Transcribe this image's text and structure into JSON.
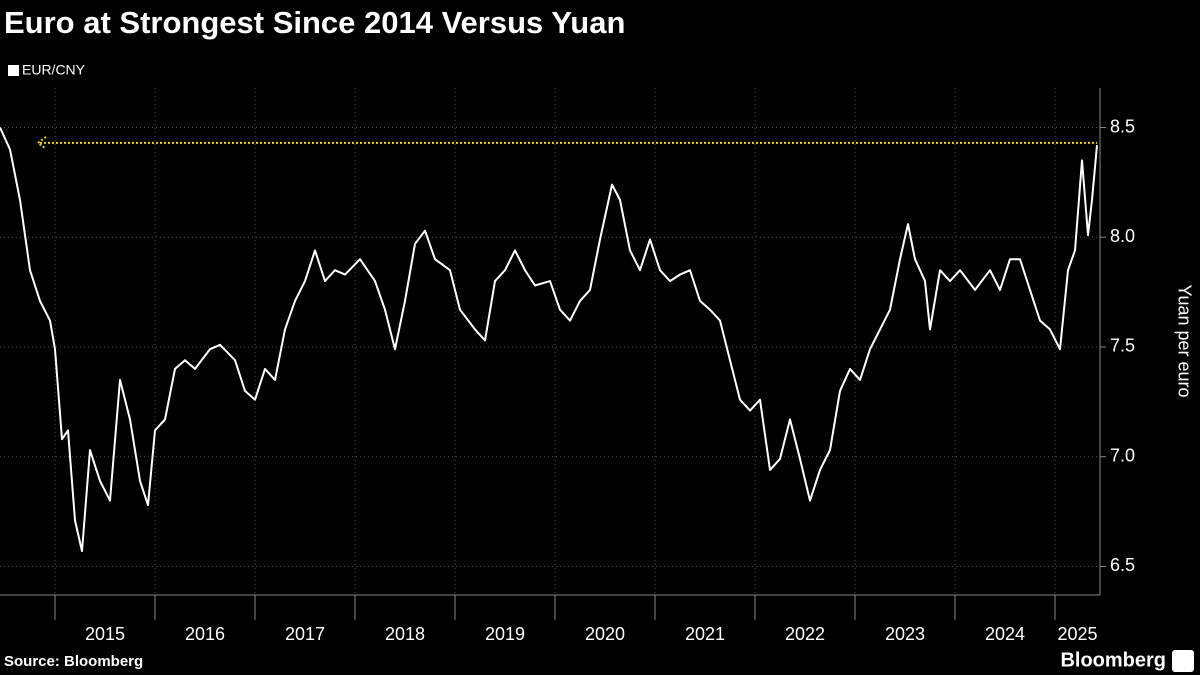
{
  "chart_data": {
    "type": "line",
    "title": "Euro at Strongest Since 2014 Versus Yuan",
    "y_axis_label": "Yuan per euro",
    "source": "Source: Bloomberg",
    "brand": "Bloomberg",
    "x": [
      2014.45,
      2014.55,
      2014.65,
      2014.75,
      2014.85,
      2014.95,
      2015.0,
      2015.07,
      2015.13,
      2015.2,
      2015.27,
      2015.35,
      2015.45,
      2015.55,
      2015.65,
      2015.75,
      2015.85,
      2015.93,
      2016.0,
      2016.1,
      2016.2,
      2016.3,
      2016.4,
      2016.55,
      2016.65,
      2016.8,
      2016.9,
      2017.0,
      2017.1,
      2017.2,
      2017.3,
      2017.4,
      2017.5,
      2017.6,
      2017.7,
      2017.8,
      2017.9,
      2018.05,
      2018.2,
      2018.3,
      2018.4,
      2018.5,
      2018.6,
      2018.7,
      2018.8,
      2018.95,
      2019.05,
      2019.2,
      2019.3,
      2019.4,
      2019.5,
      2019.6,
      2019.7,
      2019.8,
      2019.95,
      2020.05,
      2020.15,
      2020.25,
      2020.35,
      2020.45,
      2020.57,
      2020.65,
      2020.75,
      2020.85,
      2020.95,
      2021.05,
      2021.15,
      2021.25,
      2021.35,
      2021.45,
      2021.55,
      2021.65,
      2021.75,
      2021.85,
      2021.95,
      2022.05,
      2022.15,
      2022.25,
      2022.35,
      2022.45,
      2022.55,
      2022.65,
      2022.75,
      2022.85,
      2022.95,
      2023.05,
      2023.15,
      2023.25,
      2023.35,
      2023.45,
      2023.53,
      2023.6,
      2023.7,
      2023.75,
      2023.85,
      2023.95,
      2024.05,
      2024.2,
      2024.35,
      2024.45,
      2024.55,
      2024.65,
      2024.75,
      2024.85,
      2024.95,
      2025.05,
      2025.13,
      2025.2,
      2025.27,
      2025.33,
      2025.37,
      2025.42
    ],
    "series": [
      {
        "name": "EUR/CNY",
        "color": "#ffffff",
        "values": [
          8.5,
          8.4,
          8.17,
          7.85,
          7.71,
          7.62,
          7.49,
          7.08,
          7.12,
          6.71,
          6.57,
          7.03,
          6.89,
          6.8,
          7.35,
          7.17,
          6.89,
          6.78,
          7.12,
          7.17,
          7.4,
          7.44,
          7.4,
          7.49,
          7.51,
          7.44,
          7.3,
          7.26,
          7.4,
          7.35,
          7.58,
          7.71,
          7.8,
          7.94,
          7.8,
          7.85,
          7.83,
          7.9,
          7.8,
          7.67,
          7.49,
          7.71,
          7.97,
          8.03,
          7.9,
          7.85,
          7.67,
          7.58,
          7.53,
          7.8,
          7.85,
          7.94,
          7.85,
          7.78,
          7.8,
          7.67,
          7.62,
          7.71,
          7.76,
          7.99,
          8.24,
          8.17,
          7.94,
          7.85,
          7.99,
          7.85,
          7.8,
          7.83,
          7.85,
          7.71,
          7.67,
          7.62,
          7.44,
          7.26,
          7.21,
          7.26,
          6.94,
          6.99,
          7.17,
          6.99,
          6.8,
          6.94,
          7.03,
          7.3,
          7.4,
          7.35,
          7.49,
          7.58,
          7.67,
          7.9,
          8.06,
          7.9,
          7.8,
          7.58,
          7.85,
          7.8,
          7.85,
          7.76,
          7.85,
          7.76,
          7.9,
          7.9,
          7.76,
          7.62,
          7.58,
          7.49,
          7.85,
          7.94,
          8.35,
          8.01,
          8.17,
          8.42
        ]
      }
    ],
    "reference_line": {
      "value": 8.43,
      "color": "#f2d600"
    },
    "xlim": [
      2014.45,
      2025.45
    ],
    "xticks": [
      2015,
      2016,
      2017,
      2018,
      2019,
      2020,
      2021,
      2022,
      2023,
      2024,
      2025
    ],
    "ylim": [
      6.37,
      8.68
    ],
    "yticks": [
      6.5,
      {
        "value": 7,
        "label": "7.0"
      },
      7.5,
      {
        "value": 8,
        "label": "8.0"
      },
      8.5
    ],
    "grid": true
  }
}
